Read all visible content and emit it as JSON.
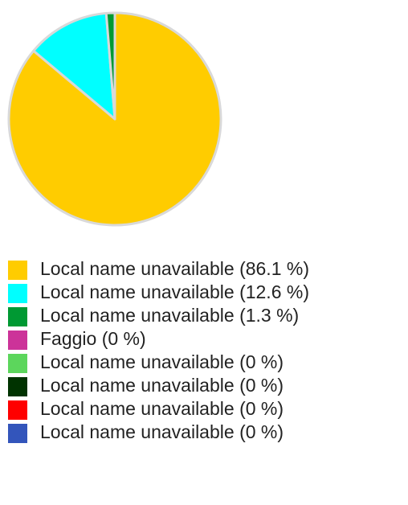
{
  "chart_data": {
    "type": "pie",
    "categories": [
      "Local name unavailable",
      "Local name unavailable",
      "Local name unavailable",
      "Faggio",
      "Local name unavailable",
      "Local name unavailable",
      "Local name unavailable",
      "Local name unavailable"
    ],
    "values": [
      86.1,
      12.6,
      1.3,
      0,
      0,
      0,
      0,
      0
    ],
    "value_labels": [
      "(86.1 %)",
      "(12.6 %)",
      "(1.3 %)",
      "(0 %)",
      "(0 %)",
      "(0 %)",
      "(0 %)",
      "(0 %)"
    ],
    "colors": [
      "#ffcc00",
      "#00ffff",
      "#009933",
      "#cc3399",
      "#5cd65c",
      "#003300",
      "#ff0000",
      "#3355bb"
    ],
    "legend": "bottom"
  }
}
